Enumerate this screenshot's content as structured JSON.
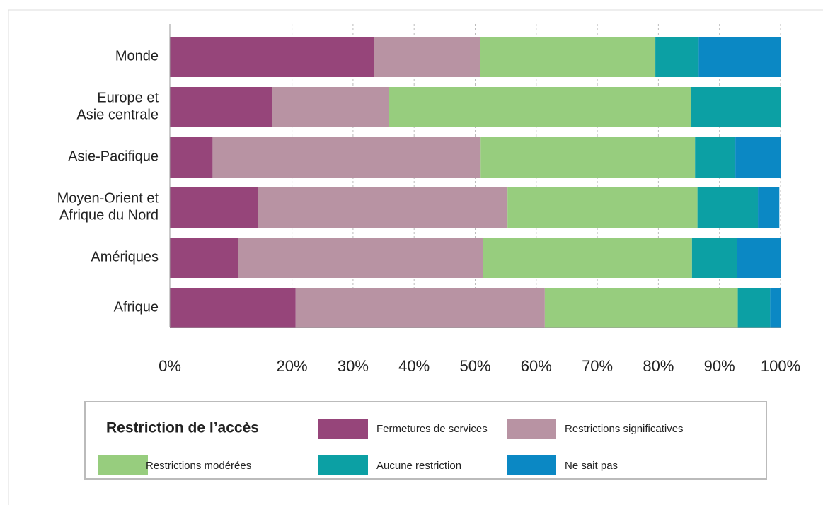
{
  "chart_data": {
    "type": "stacked-bar-horizontal",
    "categories": [
      "Monde",
      "Europe et\nAsie centrale",
      "Asie-Pacifique",
      "Moyen-Orient et\nAfrique du Nord",
      "Amériques",
      "Afrique"
    ],
    "series": [
      {
        "name": "Fermetures de services",
        "color": "#96457a",
        "values": [
          33.4,
          16.8,
          7.0,
          14.4,
          11.2,
          20.6
        ]
      },
      {
        "name": "Restrictions significatives",
        "color": "#b893a3",
        "values": [
          17.4,
          19.1,
          43.9,
          40.9,
          40.1,
          40.8
        ]
      },
      {
        "name": "Restrictions modérées",
        "color": "#97cd7e",
        "values": [
          28.7,
          49.5,
          35.1,
          31.1,
          34.2,
          31.6
        ]
      },
      {
        "name": "Aucune restriction",
        "color": "#0ca0a4",
        "values": [
          7.1,
          14.6,
          6.6,
          9.9,
          7.4,
          5.3
        ]
      },
      {
        "name": "Ne sait pas",
        "color": "#0b88c4",
        "values": [
          13.4,
          0,
          7.4,
          3.5,
          7.1,
          1.7
        ]
      }
    ],
    "xlim": [
      0,
      100
    ],
    "xticks": [
      {
        "value": 0,
        "label": "0%"
      },
      {
        "value": 20,
        "label": "20%"
      },
      {
        "value": 30,
        "label": "30%"
      },
      {
        "value": 40,
        "label": "40%"
      },
      {
        "value": 50,
        "label": "50%"
      },
      {
        "value": 60,
        "label": "60%"
      },
      {
        "value": 70,
        "label": "70%"
      },
      {
        "value": 80,
        "label": "80%"
      },
      {
        "value": 90,
        "label": "90%"
      },
      {
        "value": 100,
        "label": "100%"
      }
    ],
    "grid": true,
    "legend_title": "Restriction de l’accès",
    "legend": "bottom"
  }
}
